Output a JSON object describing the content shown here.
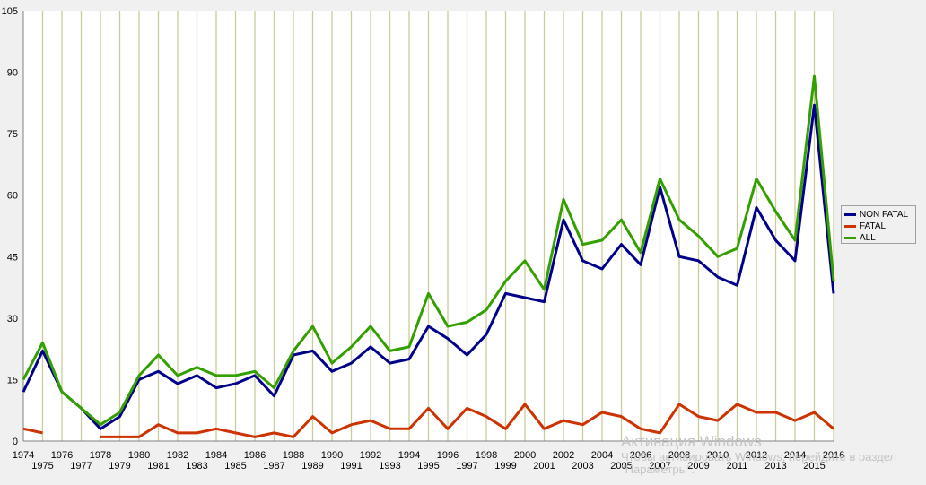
{
  "chart_data": {
    "type": "line",
    "x": [
      1974,
      1975,
      1976,
      1977,
      1978,
      1979,
      1980,
      1981,
      1982,
      1983,
      1984,
      1985,
      1986,
      1987,
      1988,
      1989,
      1990,
      1991,
      1992,
      1993,
      1994,
      1995,
      1996,
      1997,
      1998,
      1999,
      2000,
      2001,
      2002,
      2003,
      2004,
      2005,
      2006,
      2007,
      2008,
      2009,
      2010,
      2011,
      2012,
      2013,
      2014,
      2015,
      2016
    ],
    "series": [
      {
        "name": "NON FATAL",
        "color": "#00008b",
        "values": [
          12,
          22,
          12,
          8,
          3,
          6,
          15,
          17,
          14,
          16,
          13,
          14,
          16,
          11,
          21,
          22,
          17,
          19,
          23,
          19,
          20,
          28,
          25,
          21,
          26,
          36,
          35,
          34,
          54,
          44,
          42,
          48,
          43,
          62,
          45,
          44,
          40,
          38,
          57,
          49,
          44,
          82,
          36
        ]
      },
      {
        "name": "FATAL",
        "color": "#cc3300",
        "values": [
          3,
          2,
          null,
          null,
          1,
          1,
          1,
          4,
          2,
          2,
          3,
          2,
          1,
          2,
          1,
          6,
          2,
          4,
          5,
          3,
          3,
          8,
          3,
          8,
          6,
          3,
          9,
          3,
          5,
          4,
          7,
          6,
          3,
          2,
          9,
          6,
          5,
          9,
          7,
          7,
          5,
          7,
          3
        ]
      },
      {
        "name": "ALL",
        "color": "#33a000",
        "values": [
          15,
          24,
          12,
          8,
          4,
          7,
          16,
          21,
          16,
          18,
          16,
          16,
          17,
          13,
          22,
          28,
          19,
          23,
          28,
          22,
          23,
          36,
          28,
          29,
          32,
          39,
          44,
          37,
          59,
          48,
          49,
          54,
          46,
          64,
          54,
          50,
          45,
          47,
          64,
          56,
          49,
          89,
          39
        ]
      }
    ],
    "ylim": [
      0,
      105
    ],
    "yticks": [
      0,
      15,
      30,
      45,
      60,
      75,
      90,
      105
    ],
    "grid": "vertical",
    "legend": "right"
  },
  "watermark": {
    "title": "Активация Windows",
    "subtitle": "Чтобы активировать Windows, перейдите в раздел \"Параметры\"."
  }
}
